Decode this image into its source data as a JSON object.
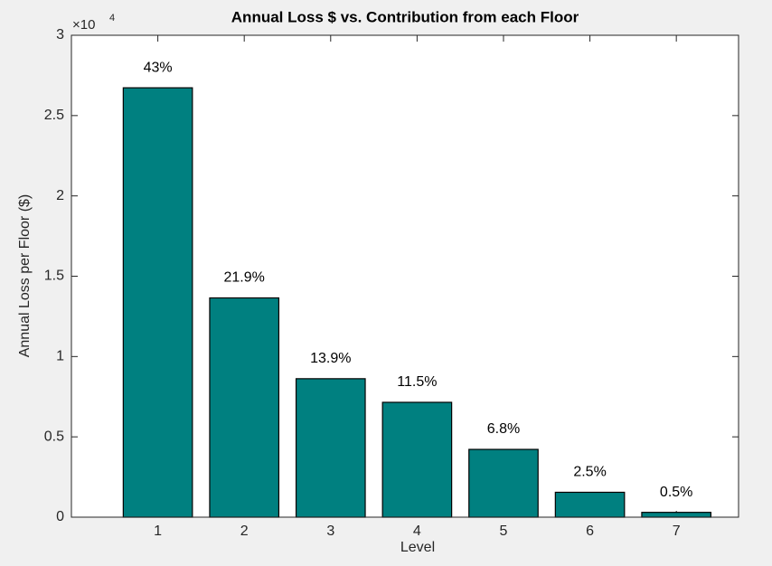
{
  "chart_data": {
    "type": "bar",
    "title": "Annual Loss $ vs. Contribution from each Floor",
    "xlabel": "Level",
    "ylabel": "Annual Loss per Floor ($)",
    "y_scale_label": "×10",
    "y_scale_exponent": "4",
    "x": [
      1,
      2,
      3,
      4,
      5,
      6,
      7
    ],
    "values": [
      2.673,
      1.365,
      0.862,
      0.715,
      0.422,
      0.155,
      0.03
    ],
    "annotations": [
      "43%",
      "21.9%",
      "13.9%",
      "11.5%",
      "6.8%",
      "2.5%",
      "0.5%"
    ],
    "color": "#008080",
    "xlim": [
      0,
      7.72
    ],
    "xticks": [
      1,
      2,
      3,
      4,
      5,
      6,
      7
    ],
    "ylim": [
      0,
      3
    ],
    "yticks": [
      0,
      0.5,
      1,
      1.5,
      2,
      2.5,
      3
    ],
    "grid": false
  }
}
